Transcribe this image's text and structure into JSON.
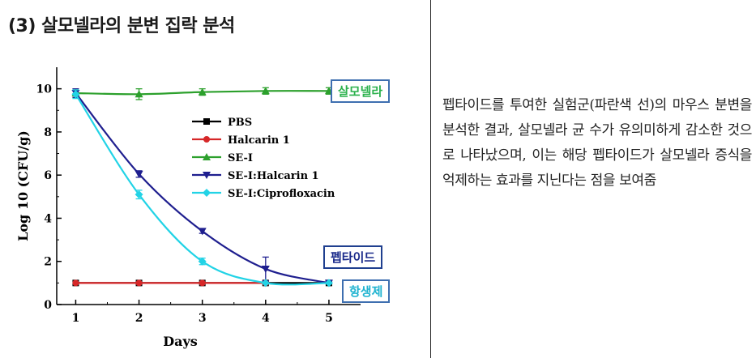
{
  "page": {
    "title": "(3) 살모넬라의 분변 집락 분석",
    "description": "펩타이드를 투여한 실험군(파란색 선)의 마우스 분변을 분석한 결과, 살모넬라 균 수가 유의미하게 감소한 것으로 나타났으며, 이는 해당 펩타이드가 살모넬라 증식을 억제하는 효과를 지닌다는 점을 보여줌"
  },
  "callouts": {
    "salmonella": "살모넬라",
    "peptide": "펩타이드",
    "antibiotic": "항생제"
  },
  "chart_data": {
    "type": "line",
    "xlabel": "Days",
    "ylabel": "Log 10 (CFU/g)",
    "x": [
      1,
      2,
      3,
      4,
      5
    ],
    "xlim": [
      0.7,
      5.5
    ],
    "ylim": [
      0,
      11
    ],
    "yticks": [
      0,
      2,
      4,
      6,
      8,
      10
    ],
    "xticks": [
      1,
      2,
      3,
      4,
      5
    ],
    "legend_position": "inside-top-center",
    "grid": false,
    "series": [
      {
        "name": "PBS",
        "color": "#000000",
        "marker": "square",
        "x": [
          1,
          2,
          3,
          4,
          5
        ],
        "values": [
          1.0,
          1.0,
          1.0,
          1.0,
          1.0
        ],
        "errors": [
          0,
          0,
          0,
          0,
          0
        ]
      },
      {
        "name": "Halcarin 1",
        "color": "#d62728",
        "marker": "circle",
        "x": [
          1,
          2,
          3,
          4
        ],
        "values": [
          1.0,
          1.0,
          1.0,
          1.0
        ],
        "errors": [
          0,
          0,
          0,
          0
        ]
      },
      {
        "name": "SE-I",
        "color": "#2ca02c",
        "marker": "triangle-up",
        "x": [
          1,
          2,
          3,
          4,
          5
        ],
        "values": [
          9.8,
          9.75,
          9.85,
          9.9,
          9.9
        ],
        "errors": [
          0.2,
          0.25,
          0.15,
          0.15,
          0.15
        ]
      },
      {
        "name": "SE-I:Halcarin 1",
        "color": "#1f1f8f",
        "marker": "triangle-down",
        "x": [
          1,
          2,
          3,
          4,
          5
        ],
        "values": [
          9.8,
          6.05,
          3.4,
          1.65,
          1.0
        ],
        "errors": [
          0.2,
          0.15,
          0.1,
          0.55,
          0
        ]
      },
      {
        "name": "SE-I:Ciprofloxacin",
        "color": "#22d3e6",
        "marker": "diamond",
        "x": [
          1,
          2,
          3,
          4,
          5
        ],
        "values": [
          9.75,
          5.1,
          2.0,
          1.0,
          1.0
        ],
        "errors": [
          0.2,
          0.2,
          0.15,
          0,
          0
        ]
      }
    ]
  }
}
